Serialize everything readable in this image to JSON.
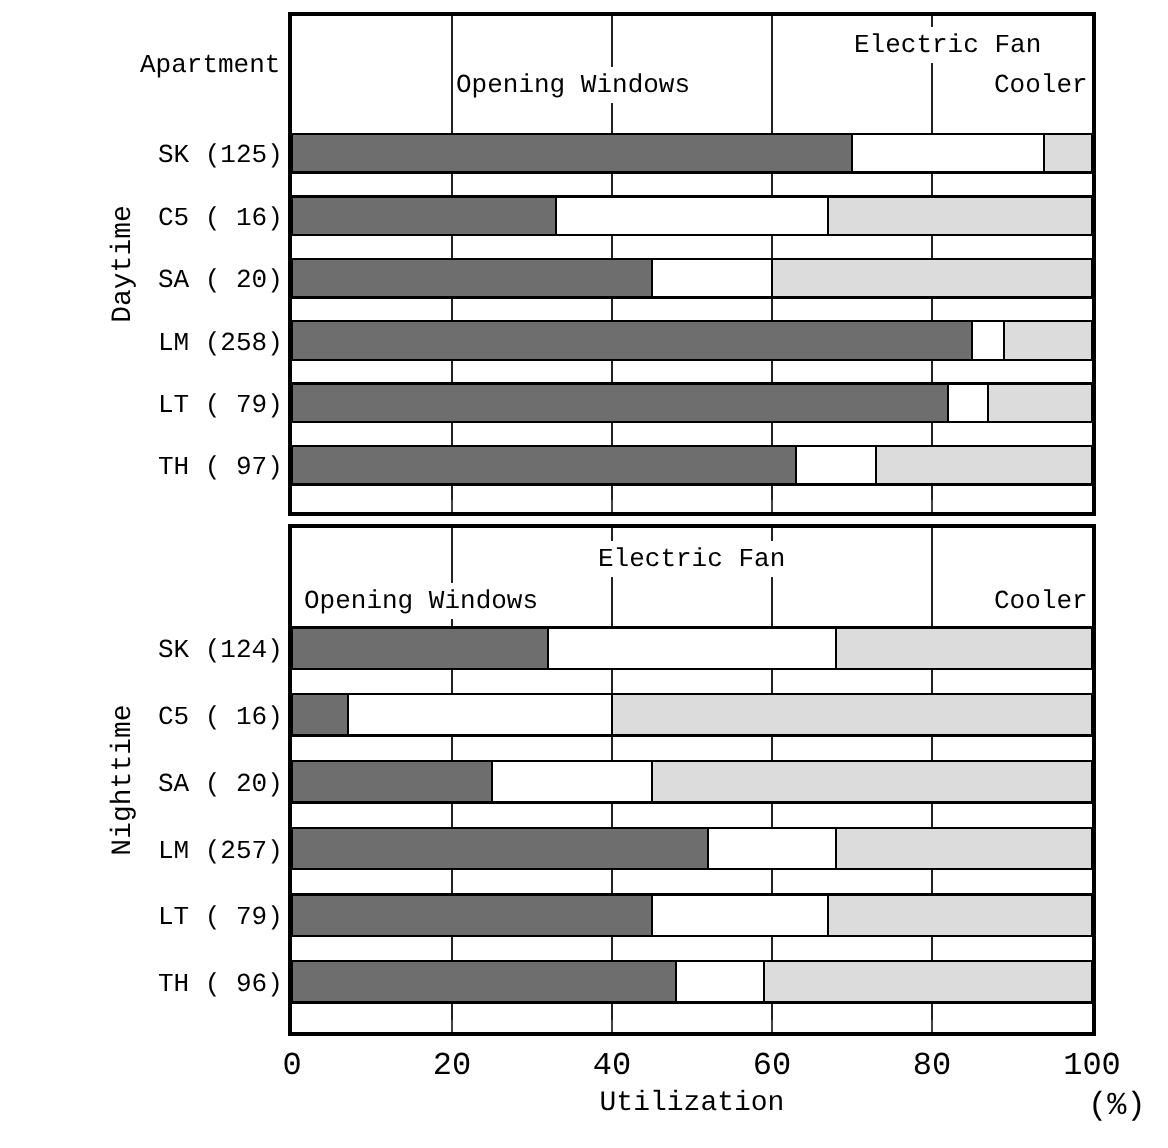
{
  "chart_data": [
    {
      "type": "bar",
      "orientation": "horizontal",
      "stacked": true,
      "ylabel": "Daytime",
      "categories": [
        "SK (125)",
        "C5 ( 16)",
        "SA ( 20)",
        "LM (258)",
        "LT ( 79)",
        "TH ( 97)"
      ],
      "series": [
        {
          "name": "Opening Windows",
          "color": "#6e6e6e",
          "values": [
            70,
            33,
            45,
            85,
            82,
            63
          ]
        },
        {
          "name": "Electric Fan",
          "color": "#ffffff",
          "values": [
            24,
            34,
            15,
            4,
            5,
            10
          ]
        },
        {
          "name": "Cooler",
          "color": "#dcdcdc",
          "values": [
            6,
            33,
            40,
            11,
            13,
            27
          ]
        }
      ],
      "xlim": [
        0,
        100
      ],
      "xticks": [
        {
          "value": 0,
          "label": null
        },
        {
          "value": 20,
          "label": null
        },
        {
          "value": 40,
          "label": null
        },
        {
          "value": 60,
          "label": null
        },
        {
          "value": 80,
          "label": null
        },
        {
          "value": 100,
          "label": null
        }
      ],
      "grid": "x",
      "legend": false,
      "tick_labels": "y",
      "annotations": [
        "Apartment"
      ]
    },
    {
      "type": "bar",
      "orientation": "horizontal",
      "stacked": true,
      "ylabel": "Nighttime",
      "xlabel": "Utilization",
      "categories": [
        "SK (124)",
        "C5 ( 16)",
        "SA ( 20)",
        "LM (257)",
        "LT ( 79)",
        "TH ( 96)"
      ],
      "series": [
        {
          "name": "Opening Windows",
          "color": "#6e6e6e",
          "values": [
            32,
            7,
            25,
            52,
            45,
            48
          ]
        },
        {
          "name": "Electric Fan",
          "color": "#ffffff",
          "values": [
            36,
            33,
            20,
            16,
            22,
            11
          ]
        },
        {
          "name": "Cooler",
          "color": "#dcdcdc",
          "values": [
            32,
            60,
            55,
            32,
            33,
            41
          ]
        }
      ],
      "xlim": [
        0,
        100
      ],
      "xticks": [
        0,
        20,
        40,
        60,
        80,
        100
      ],
      "grid": "x",
      "legend": false,
      "annotations": [
        "(%)"
      ]
    }
  ]
}
